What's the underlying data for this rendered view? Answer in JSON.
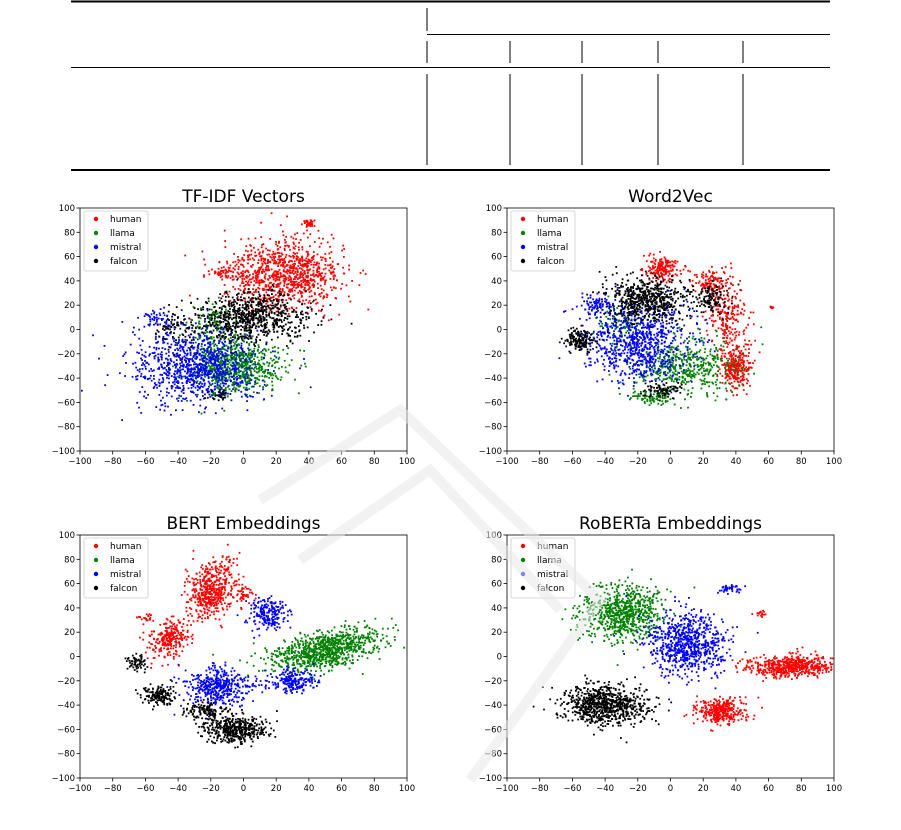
{
  "chart_data": [
    {
      "type": "scatter",
      "title": "TF-IDF Vectors",
      "xlim": [
        -100,
        100
      ],
      "ylim": [
        -100,
        100
      ],
      "xticks": [
        -100,
        -80,
        -60,
        -40,
        -20,
        0,
        20,
        40,
        60,
        80,
        100
      ],
      "yticks": [
        -100,
        -80,
        -60,
        -40,
        -20,
        0,
        20,
        40,
        60,
        80,
        100
      ],
      "grid": false,
      "legend": "upper-left",
      "series": [
        {
          "name": "human",
          "color": "#ff0000",
          "clusters": [
            [
              25,
              45,
              28,
              22,
              950,
              0.0
            ],
            [
              40,
              87,
              3,
              2,
              40,
              0.0
            ],
            [
              -10,
              48,
              10,
              6,
              60,
              0.0
            ]
          ]
        },
        {
          "name": "llama",
          "color": "#008000",
          "clusters": [
            [
              -5,
              -30,
              22,
              18,
              750,
              0.0
            ],
            [
              -18,
              5,
              10,
              15,
              120,
              0.0
            ]
          ]
        },
        {
          "name": "mistral",
          "color": "#0000ff",
          "clusters": [
            [
              -30,
              -30,
              32,
              25,
              950,
              0.0
            ],
            [
              -52,
              8,
              8,
              6,
              50,
              0.0
            ]
          ]
        },
        {
          "name": "falcon",
          "color": "#000000",
          "clusters": [
            [
              5,
              10,
              25,
              16,
              750,
              0.0
            ],
            [
              -40,
              0,
              10,
              14,
              80,
              0.0
            ],
            [
              -15,
              -55,
              6,
              5,
              30,
              0.0
            ]
          ]
        }
      ]
    },
    {
      "type": "scatter",
      "title": "Word2Vec",
      "xlim": [
        -100,
        100
      ],
      "ylim": [
        -100,
        100
      ],
      "xticks": [
        -100,
        -80,
        -60,
        -40,
        -20,
        0,
        20,
        40,
        60,
        80,
        100
      ],
      "yticks": [
        -100,
        -80,
        -60,
        -40,
        -20,
        0,
        20,
        40,
        60,
        80,
        100
      ],
      "grid": false,
      "legend": "upper-left",
      "series": [
        {
          "name": "human",
          "color": "#ff0000",
          "clusters": [
            [
              -5,
              50,
              8,
              8,
              180,
              0.0
            ],
            [
              40,
              -30,
              7,
              15,
              280,
              0.0
            ],
            [
              25,
              40,
              10,
              8,
              120,
              0.0
            ],
            [
              62,
              18,
              1,
              1,
              10,
              0.0
            ],
            [
              35,
              10,
              10,
              20,
              200,
              0.0
            ]
          ]
        },
        {
          "name": "llama",
          "color": "#008000",
          "clusters": [
            [
              10,
              -30,
              25,
              20,
              500,
              0.0
            ],
            [
              -30,
              5,
              12,
              15,
              100,
              0.0
            ],
            [
              -10,
              -55,
              12,
              6,
              80,
              0.0
            ]
          ]
        },
        {
          "name": "mistral",
          "color": "#0000ff",
          "clusters": [
            [
              -20,
              -10,
              25,
              25,
              800,
              0.0
            ],
            [
              -45,
              20,
              8,
              8,
              80,
              0.0
            ]
          ]
        },
        {
          "name": "falcon",
          "color": "#000000",
          "clusters": [
            [
              -15,
              25,
              20,
              15,
              600,
              0.0
            ],
            [
              -55,
              -8,
              8,
              7,
              150,
              0.0
            ],
            [
              -5,
              -50,
              10,
              5,
              80,
              0.0
            ],
            [
              25,
              25,
              10,
              10,
              120,
              0.0
            ]
          ]
        }
      ]
    },
    {
      "type": "scatter",
      "title": "BERT Embeddings",
      "xlim": [
        -100,
        100
      ],
      "ylim": [
        -100,
        100
      ],
      "xticks": [
        -100,
        -80,
        -60,
        -40,
        -20,
        0,
        20,
        40,
        60,
        80,
        100
      ],
      "yticks": [
        -100,
        -80,
        -60,
        -40,
        -20,
        0,
        20,
        40,
        60,
        80,
        100
      ],
      "grid": false,
      "legend": "upper-left",
      "series": [
        {
          "name": "human",
          "color": "#ff0000",
          "clusters": [
            [
              -20,
              55,
              12,
              18,
              500,
              0.5
            ],
            [
              -45,
              15,
              10,
              12,
              250,
              0.3
            ],
            [
              -60,
              32,
              4,
              2,
              20,
              0.0
            ],
            [
              0,
              50,
              5,
              5,
              40,
              0.0
            ]
          ]
        },
        {
          "name": "llama",
          "color": "#008000",
          "clusters": [
            [
              50,
              5,
              28,
              12,
              900,
              0.25
            ]
          ]
        },
        {
          "name": "mistral",
          "color": "#0000ff",
          "clusters": [
            [
              -15,
              -25,
              15,
              12,
              450,
              0.0
            ],
            [
              15,
              35,
              10,
              10,
              200,
              0.0
            ],
            [
              30,
              -20,
              12,
              8,
              200,
              0.0
            ]
          ]
        },
        {
          "name": "falcon",
          "color": "#000000",
          "clusters": [
            [
              -5,
              -60,
              15,
              10,
              450,
              0.0
            ],
            [
              -52,
              -32,
              8,
              7,
              150,
              0.0
            ],
            [
              -65,
              -5,
              5,
              5,
              60,
              0.0
            ],
            [
              -25,
              -45,
              10,
              6,
              120,
              0.0
            ]
          ]
        }
      ]
    },
    {
      "type": "scatter",
      "title": "RoBERTa Embeddings",
      "xlim": [
        -100,
        100
      ],
      "ylim": [
        -100,
        100
      ],
      "xticks": [
        -100,
        -80,
        -60,
        -40,
        -20,
        0,
        20,
        40,
        60,
        80,
        100
      ],
      "yticks": [
        -100,
        -80,
        -60,
        -40,
        -20,
        0,
        20,
        40,
        60,
        80,
        100
      ],
      "grid": false,
      "legend": "upper-left",
      "series": [
        {
          "name": "human",
          "color": "#ff0000",
          "clusters": [
            [
              75,
              -8,
              20,
              7,
              550,
              0.0
            ],
            [
              30,
              -45,
              12,
              8,
              350,
              0.0
            ],
            [
              55,
              35,
              3,
              2,
              15,
              0.0
            ]
          ]
        },
        {
          "name": "llama",
          "color": "#008000",
          "clusters": [
            [
              -30,
              35,
              20,
              18,
              750,
              0.0
            ]
          ]
        },
        {
          "name": "mistral",
          "color": "#0000ff",
          "clusters": [
            [
              10,
              10,
              18,
              20,
              750,
              0.0
            ],
            [
              35,
              55,
              6,
              3,
              40,
              0.0
            ]
          ]
        },
        {
          "name": "falcon",
          "color": "#000000",
          "clusters": [
            [
              -40,
              -40,
              20,
              13,
              800,
              0.0
            ]
          ]
        }
      ]
    }
  ]
}
